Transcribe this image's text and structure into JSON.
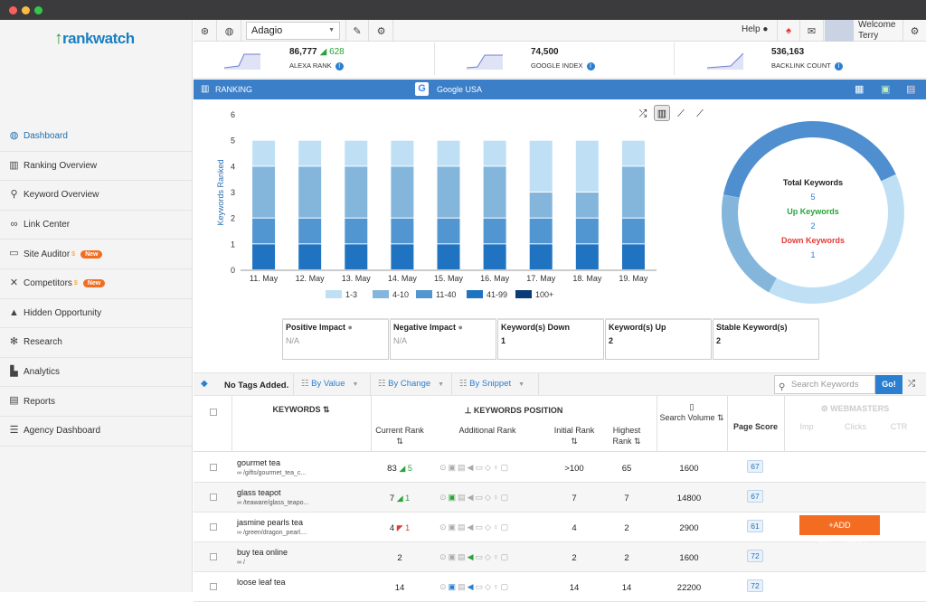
{
  "app": {
    "brand": "rankwatch"
  },
  "sidebar": {
    "items": [
      {
        "label": "Dashboard",
        "icon": "globe-icon",
        "active": true
      },
      {
        "label": "Ranking Overview",
        "icon": "bar-chart-icon"
      },
      {
        "label": "Keyword Overview",
        "icon": "search-icon"
      },
      {
        "label": "Link Center",
        "icon": "link-icon"
      },
      {
        "label": "Site Auditor",
        "icon": "monitor-icon",
        "badge": "New"
      },
      {
        "label": "Competitors",
        "icon": "crosshair-icon",
        "badge": "New"
      },
      {
        "label": "Hidden Opportunity",
        "icon": "graduation-cap-icon"
      },
      {
        "label": "Research",
        "icon": "atom-icon"
      },
      {
        "label": "Analytics",
        "icon": "analytics-icon"
      },
      {
        "label": "Reports",
        "icon": "pdf-icon"
      },
      {
        "label": "Agency Dashboard",
        "icon": "list-icon"
      }
    ]
  },
  "topbar": {
    "project": "Adagio",
    "help": "Help",
    "welcome": "Welcome",
    "user": "Terry"
  },
  "metrics": [
    {
      "value": "86,777",
      "delta": "628",
      "label": "ALEXA RANK"
    },
    {
      "value": "74,500",
      "label": "GOOGLE INDEX"
    },
    {
      "value": "536,163",
      "label": "BACKLINK COUNT"
    }
  ],
  "ranking": {
    "title": "RANKING",
    "engine": "Google USA"
  },
  "chart_data": {
    "type": "bar",
    "stacked": true,
    "categories": [
      "11. May",
      "12. May",
      "13. May",
      "14. May",
      "15. May",
      "16. May",
      "17. May",
      "18. May",
      "19. May"
    ],
    "ylabel": "Keywords Ranked",
    "ylim": [
      0,
      6
    ],
    "yticks": [
      0,
      1,
      2,
      3,
      4,
      5,
      6
    ],
    "series": [
      {
        "name": "1-3",
        "color": "#bfe0f4",
        "values": [
          1,
          1,
          1,
          1,
          1,
          1,
          2,
          2,
          1
        ]
      },
      {
        "name": "4-10",
        "color": "#84b6dc",
        "values": [
          2,
          2,
          2,
          2,
          2,
          2,
          1,
          1,
          2
        ]
      },
      {
        "name": "11-40",
        "color": "#5296d1",
        "values": [
          1,
          1,
          1,
          1,
          1,
          1,
          1,
          1,
          1
        ]
      },
      {
        "name": "41-99",
        "color": "#1f73c1",
        "values": [
          1,
          1,
          1,
          1,
          1,
          1,
          1,
          1,
          1
        ]
      },
      {
        "name": "100+",
        "color": "#0b3c7a",
        "values": [
          0,
          0,
          0,
          0,
          0,
          0,
          0,
          0,
          0
        ]
      }
    ]
  },
  "donut": {
    "total_label": "Total Keywords",
    "total": "5",
    "up_label": "Up Keywords",
    "up": "2",
    "down_label": "Down Keywords",
    "down": "1"
  },
  "impact": [
    {
      "title": "Positive Impact",
      "value": "N/A",
      "info": true
    },
    {
      "title": "Negative Impact",
      "value": "N/A",
      "info": true
    },
    {
      "title": "Keyword(s) Down",
      "value": "1"
    },
    {
      "title": "Keyword(s) Up",
      "value": "2"
    },
    {
      "title": "Stable Keyword(s)",
      "value": "2"
    }
  ],
  "filters": {
    "tags": "No Tags Added.",
    "by_value": "By Value",
    "by_change": "By Change",
    "by_snippet": "By Snippet",
    "search_placeholder": "Search Keywords",
    "go": "Go!"
  },
  "table": {
    "headers": {
      "keywords": "KEYWORDS",
      "position": "KEYWORDS POSITION",
      "current_rank": "Current Rank",
      "additional_rank": "Additional Rank",
      "initial_rank": "Initial Rank",
      "highest_rank": "Highest Rank",
      "search_volume": "Search Volume",
      "page_score": "Page Score",
      "webmasters": "WEBMASTERS",
      "imp": "Imp",
      "clicks": "Clicks",
      "ctr": "CTR"
    },
    "rows": [
      {
        "keyword": "gourmet tea",
        "url": "/gifts/gourmet_tea_c...",
        "current": "83",
        "delta": "5",
        "dir": "up",
        "initial": ">100",
        "highest": "65",
        "volume": "1600",
        "score": "67"
      },
      {
        "keyword": "glass teapot",
        "url": "/teaware/glass_teapo...",
        "current": "7",
        "delta": "1",
        "dir": "up",
        "initial": "7",
        "highest": "7",
        "volume": "14800",
        "score": "67"
      },
      {
        "keyword": "jasmine pearls tea",
        "url": "/green/dragon_pearl....",
        "current": "4",
        "delta": "1",
        "dir": "down",
        "initial": "4",
        "highest": "2",
        "volume": "2900",
        "score": "61"
      },
      {
        "keyword": "buy tea online",
        "url": "/",
        "current": "2",
        "delta": "",
        "dir": "",
        "initial": "2",
        "highest": "2",
        "volume": "1600",
        "score": "72"
      },
      {
        "keyword": "loose leaf tea",
        "url": "",
        "current": "14",
        "delta": "",
        "dir": "",
        "initial": "14",
        "highest": "14",
        "volume": "22200",
        "score": "72"
      }
    ],
    "add_webmasters": "+ADD WEBMASTERS"
  }
}
